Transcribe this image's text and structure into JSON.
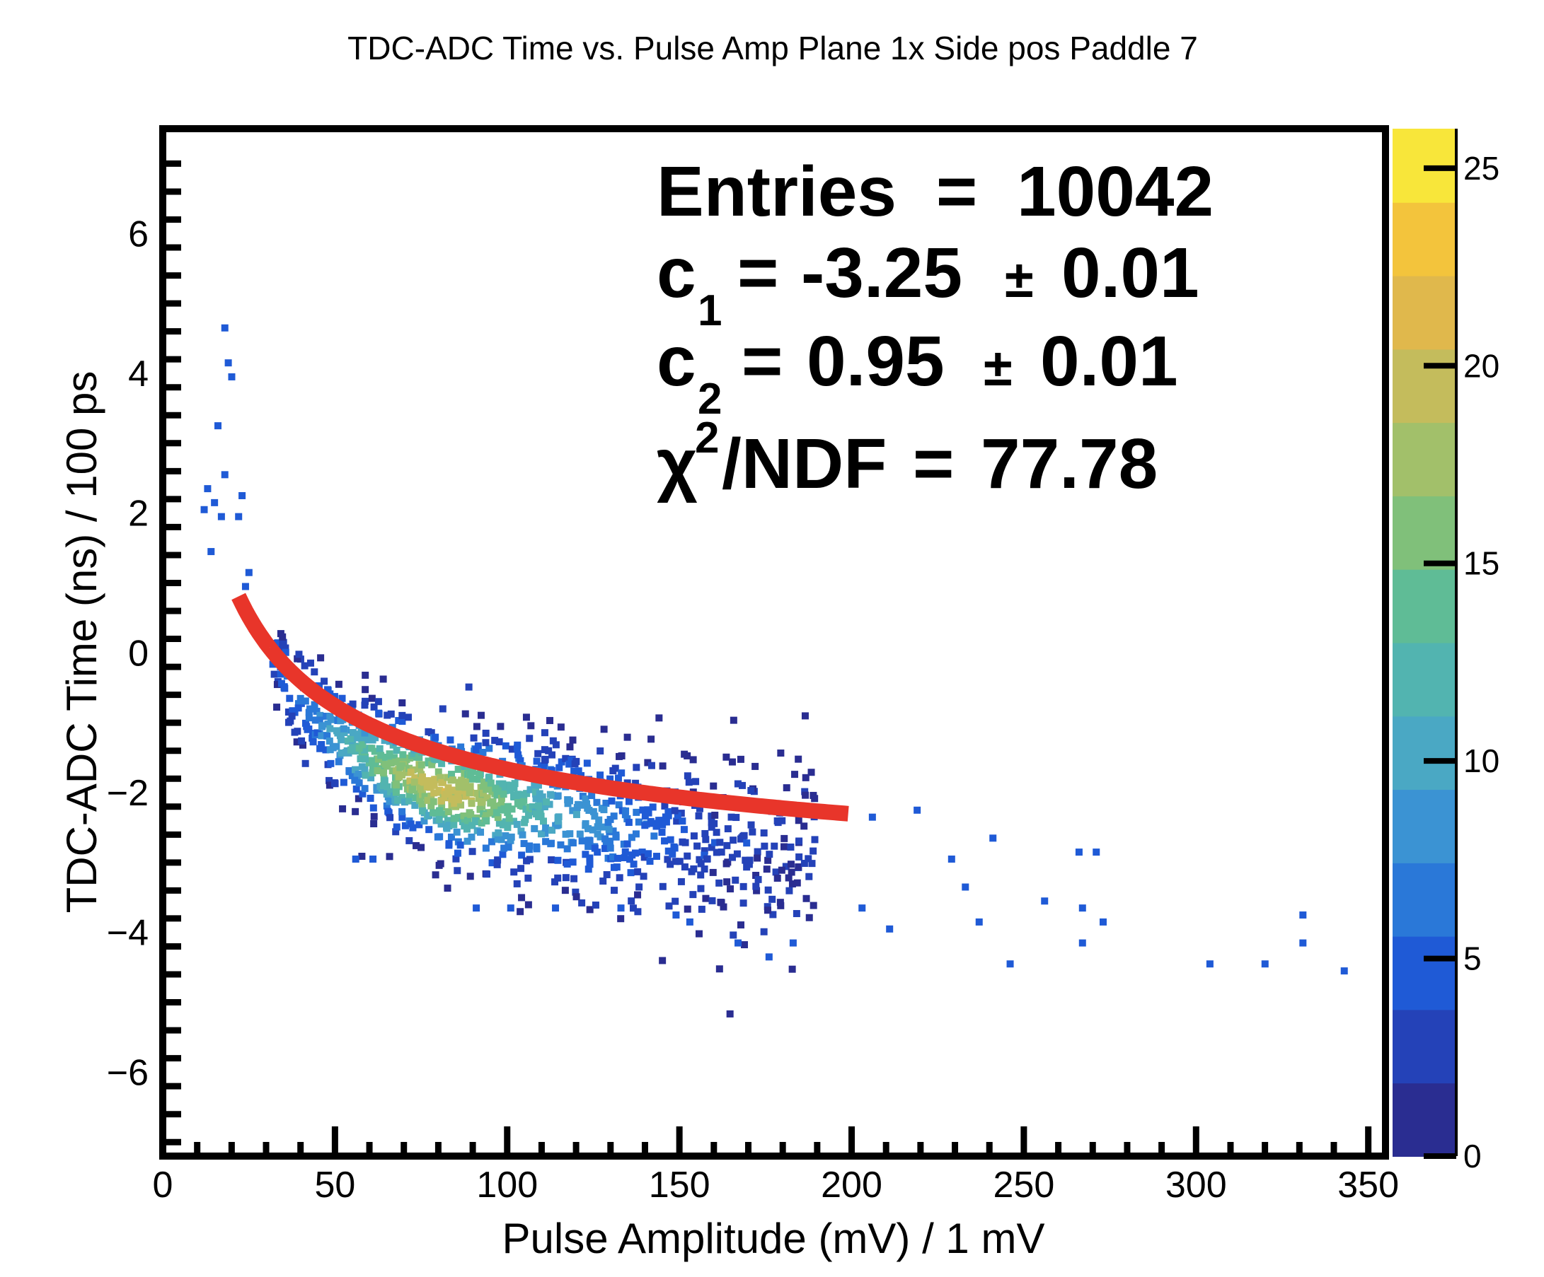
{
  "chart_data": {
    "type": "heatmap",
    "title": "TDC-ADC Time vs. Pulse Amp Plane 1x Side pos Paddle 7",
    "xlabel": "Pulse Amplitude (mV) / 1 mV",
    "ylabel": "TDC-ADC Time (ns) / 100 ps",
    "xlim": [
      0,
      355
    ],
    "ylim": [
      -7.2,
      7.5
    ],
    "xticks": [
      0,
      50,
      100,
      150,
      200,
      250,
      300,
      350
    ],
    "xtick_labels": [
      "0",
      "50",
      "100",
      "150",
      "200",
      "250",
      "300",
      "350"
    ],
    "yticks": [
      -6,
      -4,
      -2,
      0,
      2,
      4,
      6
    ],
    "ytick_labels": [
      "−6",
      "−4",
      "−2",
      "0",
      "2",
      "4",
      "6"
    ],
    "colorbar": {
      "zlim": [
        0,
        26
      ],
      "ticks": [
        0,
        5,
        10,
        15,
        20,
        25
      ],
      "tick_labels": [
        "0",
        "5",
        "10",
        "15",
        "20",
        "25"
      ],
      "colors": [
        "#2a2d91",
        "#2442b8",
        "#1f5ad6",
        "#2a78d8",
        "#3b93d3",
        "#4aa8c4",
        "#52b4b0",
        "#5fbc96",
        "#80c07a",
        "#a2c06a",
        "#c4bc5c",
        "#e0b84c",
        "#f3c43c",
        "#f8e63a"
      ]
    },
    "stats": {
      "entries_label": "Entries",
      "entries_value": "10042",
      "c1_symbol": "c",
      "c1_index": "1",
      "c1_value": "-3.25",
      "c1_error": "0.01",
      "c2_symbol": "c",
      "c2_index": "2",
      "c2_value": "0.95",
      "c2_error": "0.01",
      "chi2_symbol": "χ",
      "chi2_power": "2",
      "chi2_label": "/NDF",
      "chi2_value": "77.78",
      "eq": "=",
      "pm": "±"
    },
    "fit": {
      "model": "c1 + c2 / sqrt(x)",
      "x_range": [
        22,
        199
      ],
      "color": "#e8352a"
    },
    "band_points": [
      {
        "x": 30,
        "y": 0.2,
        "z": 3
      },
      {
        "x": 35,
        "y": -0.3,
        "z": 4
      },
      {
        "x": 40,
        "y": -0.7,
        "z": 5
      },
      {
        "x": 45,
        "y": -0.9,
        "z": 7
      },
      {
        "x": 50,
        "y": -1.2,
        "z": 9
      },
      {
        "x": 55,
        "y": -1.3,
        "z": 11
      },
      {
        "x": 60,
        "y": -1.5,
        "z": 13
      },
      {
        "x": 65,
        "y": -1.6,
        "z": 15
      },
      {
        "x": 70,
        "y": -1.7,
        "z": 17
      },
      {
        "x": 75,
        "y": -1.8,
        "z": 18
      },
      {
        "x": 80,
        "y": -1.9,
        "z": 19
      },
      {
        "x": 85,
        "y": -2.0,
        "z": 18
      },
      {
        "x": 90,
        "y": -2.0,
        "z": 17
      },
      {
        "x": 95,
        "y": -2.1,
        "z": 15
      },
      {
        "x": 100,
        "y": -2.1,
        "z": 13
      },
      {
        "x": 110,
        "y": -2.2,
        "z": 10
      },
      {
        "x": 120,
        "y": -2.3,
        "z": 8
      },
      {
        "x": 130,
        "y": -2.4,
        "z": 6
      },
      {
        "x": 140,
        "y": -2.5,
        "z": 4
      },
      {
        "x": 150,
        "y": -2.5,
        "z": 3
      },
      {
        "x": 160,
        "y": -2.6,
        "z": 2
      },
      {
        "x": 170,
        "y": -2.7,
        "z": 2
      },
      {
        "x": 180,
        "y": -2.8,
        "z": 1
      },
      {
        "x": 190,
        "y": -2.8,
        "z": 1
      }
    ],
    "outliers": [
      {
        "x": 17,
        "y": 4.7
      },
      {
        "x": 18,
        "y": 4.2
      },
      {
        "x": 19,
        "y": 4.0
      },
      {
        "x": 15,
        "y": 3.3
      },
      {
        "x": 17,
        "y": 2.6
      },
      {
        "x": 12,
        "y": 2.4
      },
      {
        "x": 11,
        "y": 2.1
      },
      {
        "x": 14,
        "y": 2.2
      },
      {
        "x": 16,
        "y": 2.0
      },
      {
        "x": 22,
        "y": 2.3
      },
      {
        "x": 21,
        "y": 2.0
      },
      {
        "x": 13,
        "y": 1.5
      },
      {
        "x": 24,
        "y": 1.2
      },
      {
        "x": 23,
        "y": 1.0
      },
      {
        "x": 25,
        "y": 0.4
      },
      {
        "x": 228,
        "y": -2.9
      },
      {
        "x": 240,
        "y": -2.6
      },
      {
        "x": 265,
        "y": -2.8
      },
      {
        "x": 270,
        "y": -2.8
      },
      {
        "x": 255,
        "y": -3.5
      },
      {
        "x": 266,
        "y": -3.6
      },
      {
        "x": 272,
        "y": -3.8
      },
      {
        "x": 232,
        "y": -3.3
      },
      {
        "x": 236,
        "y": -3.8
      },
      {
        "x": 245,
        "y": -4.4
      },
      {
        "x": 175,
        "y": -4.3
      },
      {
        "x": 166,
        "y": -4.1
      },
      {
        "x": 182,
        "y": -4.1
      },
      {
        "x": 202,
        "y": -3.6
      },
      {
        "x": 210,
        "y": -3.9
      },
      {
        "x": 218,
        "y": -2.2
      },
      {
        "x": 205,
        "y": -2.3
      },
      {
        "x": 266,
        "y": -4.1
      },
      {
        "x": 303,
        "y": -4.4
      },
      {
        "x": 319,
        "y": -4.4
      },
      {
        "x": 330,
        "y": -3.7
      },
      {
        "x": 330,
        "y": -4.1
      },
      {
        "x": 342,
        "y": -4.5
      },
      {
        "x": 55,
        "y": -2.9
      },
      {
        "x": 60,
        "y": -2.9
      },
      {
        "x": 90,
        "y": -3.6
      },
      {
        "x": 100,
        "y": -3.6
      },
      {
        "x": 113,
        "y": -3.6
      },
      {
        "x": 132,
        "y": -3.6
      },
      {
        "x": 148,
        "y": -3.7
      },
      {
        "x": 152,
        "y": -3.8
      }
    ]
  }
}
